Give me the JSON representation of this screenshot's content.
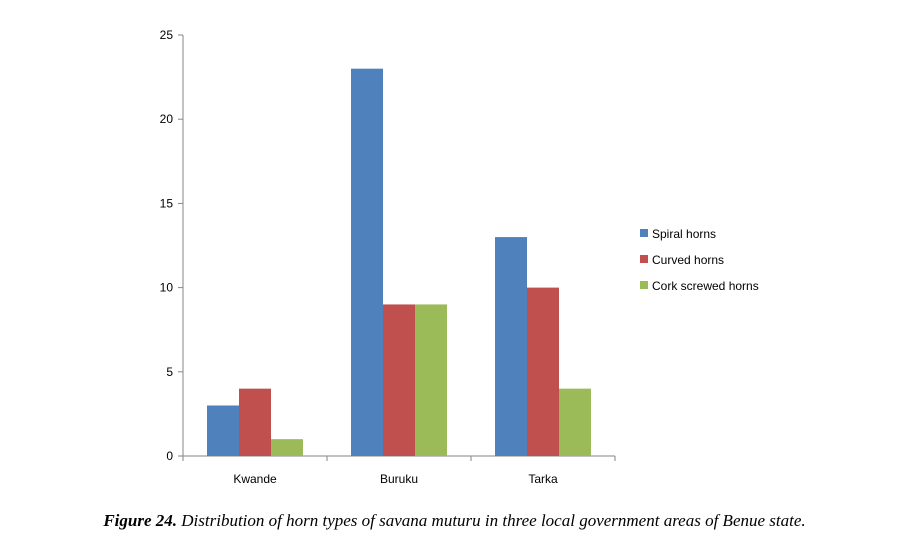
{
  "chart_data": {
    "type": "bar",
    "categories": [
      "Kwande",
      "Buruku",
      "Tarka"
    ],
    "series": [
      {
        "name": "Spiral horns",
        "values": [
          3,
          23,
          13
        ],
        "color": "#4F81BD"
      },
      {
        "name": "Curved horns",
        "values": [
          4,
          9,
          10
        ],
        "color": "#C0504D"
      },
      {
        "name": "Cork screwed horns",
        "values": [
          1,
          9,
          4
        ],
        "color": "#9BBB59"
      }
    ],
    "ylim": [
      0,
      25
    ],
    "yticks": [
      0,
      5,
      10,
      15,
      20,
      25
    ],
    "xlabel": "",
    "ylabel": "",
    "legend": "right",
    "grid": false
  },
  "caption": {
    "label": "Figure 24.",
    "text": " Distribution of horn types of savana muturu in three local government areas of Benue state."
  }
}
